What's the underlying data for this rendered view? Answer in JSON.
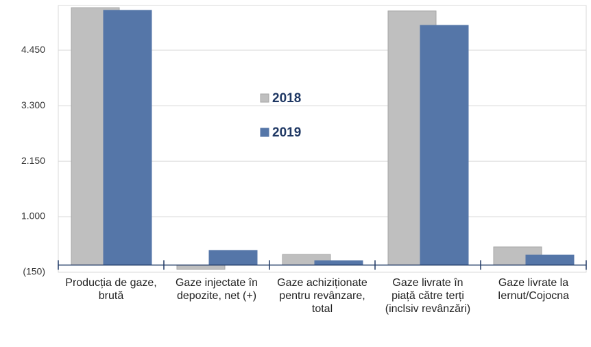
{
  "chart_data": {
    "type": "bar",
    "categories": [
      "Producția de gaze, brută",
      "Gaze injectate în depozite, net (+)",
      "Gaze achiziționate pentru revânzare, total",
      "Gaze livrate în piață către terți (inclsiv revânzări)",
      "Gaze livrate la Iernut/Cojocna"
    ],
    "series": [
      {
        "name": "2018",
        "color": "#bfbfbf",
        "values": [
          5330,
          -90,
          220,
          5262,
          375
        ]
      },
      {
        "name": "2019",
        "color": "#5576a8",
        "values": [
          5273,
          300,
          90,
          4964,
          205
        ]
      }
    ],
    "ylim": [
      -150,
      5375
    ],
    "yticks": [
      {
        "value": -150,
        "label": "(150)"
      },
      {
        "value": 1000,
        "label": "1.000"
      },
      {
        "value": 2150,
        "label": "2.150"
      },
      {
        "value": 3300,
        "label": "3.300"
      },
      {
        "value": 4450,
        "label": "4.450"
      }
    ],
    "grid": true
  }
}
